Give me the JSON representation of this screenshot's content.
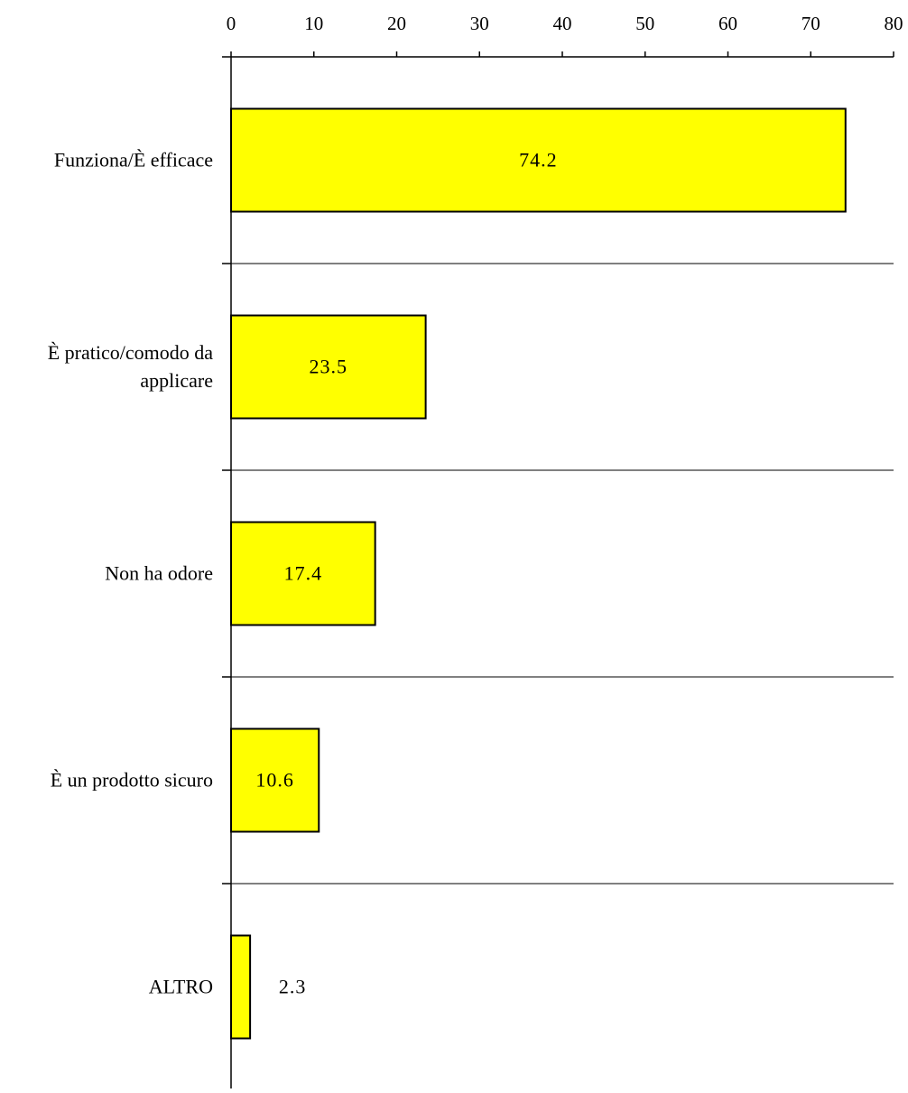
{
  "chart_data": {
    "type": "bar",
    "orientation": "horizontal",
    "title": "",
    "xlabel": "",
    "ylabel": "",
    "categories": [
      [
        "Funziona/È efficace"
      ],
      [
        "È pratico/comodo da",
        "applicare"
      ],
      [
        "Non ha odore"
      ],
      [
        "È un prodotto sicuro"
      ],
      [
        "ALTRO"
      ]
    ],
    "values": [
      74.2,
      23.5,
      17.4,
      10.6,
      2.3
    ],
    "value_labels": [
      "74.2",
      "23.5",
      "17.4",
      "10.6",
      "2.3"
    ],
    "xlim": [
      0,
      80
    ],
    "x_ticks": [
      0,
      10,
      20,
      30,
      40,
      50,
      60,
      70,
      80
    ],
    "x_axis_position": "top",
    "gridlines": "horizontal separators between categories",
    "legend": "none",
    "colors": {
      "bar_fill": "#ffff00",
      "bar_stroke": "#000000",
      "axis": "#000000",
      "separator": "#000000"
    }
  }
}
